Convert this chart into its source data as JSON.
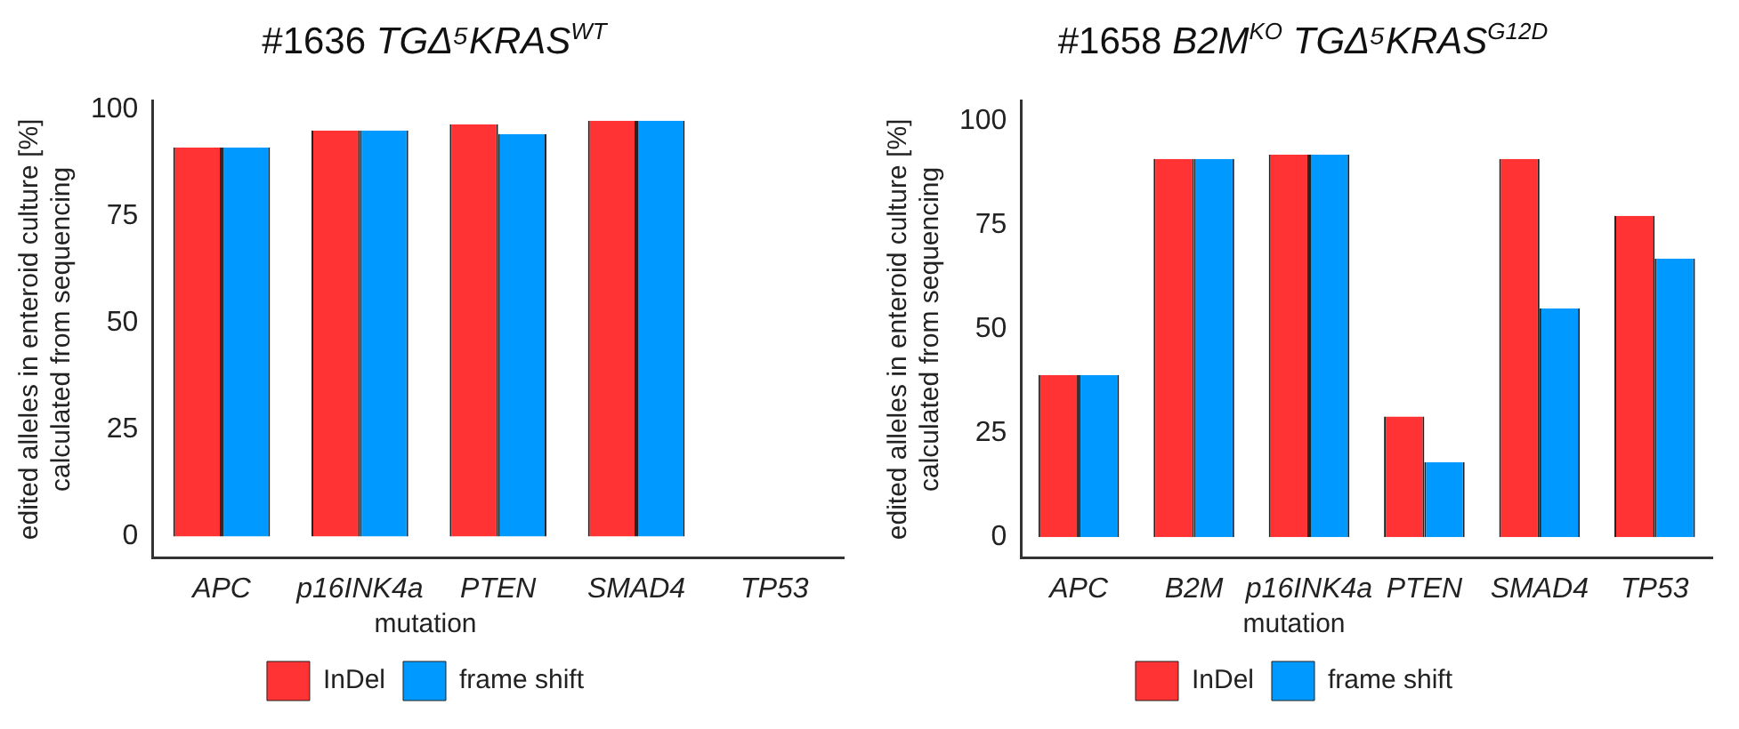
{
  "chart_data": [
    {
      "type": "bar",
      "title": "#1636 TGΔ⁵KRAS$^{WT}$",
      "ylabel": "edited alleles in enteroid culture [%]\ncalculated from sequencing",
      "legend_title": "mutation",
      "categories": [
        "APC",
        "p16INK4a",
        "PTEN",
        "SMAD4",
        "TP53"
      ],
      "series": [
        {
          "name": "InDel",
          "color": "#ff3333",
          "values": [
            91,
            95,
            96.5,
            97.3,
            null
          ]
        },
        {
          "name": "frame shift",
          "color": "#0099ff",
          "values": [
            91,
            95,
            94.2,
            97.3,
            null
          ]
        }
      ],
      "ylim": [
        -5,
        102
      ],
      "yticks": [
        0,
        25,
        50,
        75,
        100
      ],
      "grid": false,
      "legend": "bottom"
    },
    {
      "type": "bar",
      "title": "#1658 B2M$^{KO}$ TGΔ⁵KRAS$^{G12D}$",
      "ylabel": "edited alleles in enteroid culture [%]\ncalculated from sequencing",
      "legend_title": "mutation",
      "categories": [
        "APC",
        "B2M",
        "p16INK4a",
        "PTEN",
        "SMAD4",
        "TP53"
      ],
      "series": [
        {
          "name": "InDel",
          "color": "#ff3333",
          "values": [
            39,
            91,
            92,
            29,
            91,
            77.3
          ]
        },
        {
          "name": "frame shift",
          "color": "#0099ff",
          "values": [
            39,
            91,
            92,
            18,
            55,
            67
          ]
        }
      ],
      "ylim": [
        -5,
        105
      ],
      "yticks": [
        0,
        25,
        50,
        75,
        100
      ],
      "grid": false,
      "legend": "bottom"
    }
  ]
}
